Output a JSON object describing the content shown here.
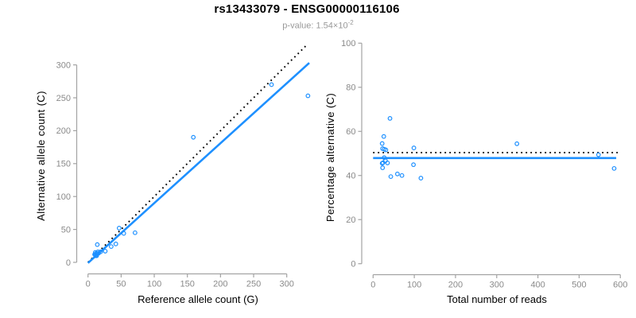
{
  "header": {
    "title": "rs13433079 - ENSG00000116106",
    "p_value_text": "p-value: 1.54×10",
    "p_value_exponent": "-2"
  },
  "colors": {
    "points": "#1E90FF",
    "fit_line": "#1E90FF",
    "reference_line": "#000000",
    "axis_line": "#A3A3A3",
    "tick_label": "#8A8A8A",
    "axis_title": "#000000",
    "title": "#000000",
    "subtitle": "#999999",
    "background": "#FFFFFF"
  },
  "chart_data": [
    {
      "type": "scatter",
      "panel": "allele-counts",
      "title": "",
      "xlabel": "Reference allele count (G)",
      "ylabel": "Alternative allele count (C)",
      "xlim": [
        0,
        345
      ],
      "ylim": [
        0,
        345
      ],
      "xticks": [
        0,
        50,
        100,
        150,
        200,
        250,
        300
      ],
      "yticks": [
        0,
        50,
        100,
        150,
        200,
        250,
        300
      ],
      "grid": false,
      "legend": "none",
      "points": [
        [
          12,
          10
        ],
        [
          13,
          10
        ],
        [
          13,
          11
        ],
        [
          11,
          12
        ],
        [
          14,
          13
        ],
        [
          13,
          14
        ],
        [
          16,
          14
        ],
        [
          15,
          16
        ],
        [
          10,
          12
        ],
        [
          11,
          15
        ],
        [
          19,
          16
        ],
        [
          14,
          27
        ],
        [
          26,
          17
        ],
        [
          35,
          24
        ],
        [
          42,
          28
        ],
        [
          47,
          52
        ],
        [
          54,
          44
        ],
        [
          71,
          45
        ],
        [
          159,
          190
        ],
        [
          277,
          270
        ],
        [
          332,
          253
        ]
      ],
      "lines": [
        {
          "name": "identity-line",
          "style": "dotted",
          "color_key": "reference_line",
          "x1": 0,
          "y1": 0,
          "x2": 332,
          "y2": 332
        },
        {
          "name": "fit-line",
          "style": "solid",
          "color_key": "fit_line",
          "x1": 0,
          "y1": -1,
          "x2": 334,
          "y2": 303
        }
      ]
    },
    {
      "type": "scatter",
      "panel": "percentage-alternative",
      "title": "",
      "xlabel": "Total number of reads",
      "ylabel": "Percentage alternative (C)",
      "xlim": [
        0,
        624
      ],
      "ylim": [
        -4,
        104
      ],
      "xticks": [
        0,
        100,
        200,
        300,
        400,
        500,
        600
      ],
      "yticks": [
        0,
        20,
        40,
        60,
        80,
        100
      ],
      "grid": false,
      "legend": "none",
      "points": [
        [
          22,
          45.5
        ],
        [
          23,
          43.5
        ],
        [
          24,
          45.8
        ],
        [
          23,
          52.2
        ],
        [
          27,
          48.1
        ],
        [
          27,
          51.9
        ],
        [
          30,
          46.7
        ],
        [
          31,
          51.6
        ],
        [
          22,
          54.5
        ],
        [
          26,
          57.7
        ],
        [
          35,
          45.7
        ],
        [
          41,
          65.9
        ],
        [
          43,
          39.5
        ],
        [
          59,
          40.7
        ],
        [
          70,
          40.0
        ],
        [
          99,
          52.5
        ],
        [
          98,
          44.9
        ],
        [
          116,
          38.8
        ],
        [
          349,
          54.4
        ],
        [
          547,
          49.4
        ],
        [
          585,
          43.2
        ]
      ],
      "lines": [
        {
          "name": "expected-50pct-line",
          "style": "dotted",
          "color_key": "reference_line",
          "x1": 0,
          "y1": 50.4,
          "x2": 596,
          "y2": 50.4
        },
        {
          "name": "fit-line",
          "style": "solid",
          "color_key": "fit_line",
          "x1": 0,
          "y1": 47.9,
          "x2": 590,
          "y2": 47.9
        }
      ]
    }
  ]
}
